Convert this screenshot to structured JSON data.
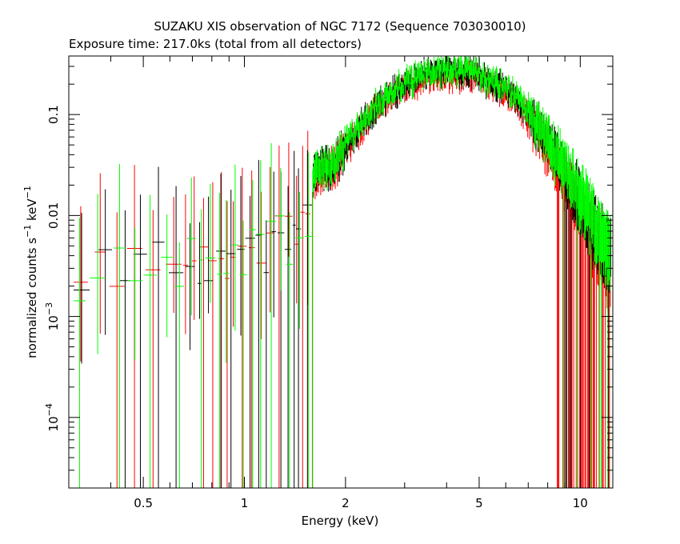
{
  "chart_data": {
    "type": "scatter",
    "title": "SUZAKU XIS observation of NGC 7172 (Sequence 703030010)",
    "subtitle": "Exposure time: 217.0ks (total from all detectors)",
    "xlabel": "Energy (keV)",
    "ylabel": {
      "main": "normalized counts s",
      "exp1": "−1",
      "mid": " keV",
      "exp2": "−1"
    },
    "x_scale": "log",
    "y_scale": "log",
    "xlim": [
      0.3,
      12.5
    ],
    "ylim": [
      2e-05,
      0.38
    ],
    "x_ticks": [
      {
        "value": 0.5,
        "label": "0.5"
      },
      {
        "value": 1,
        "label": "1"
      },
      {
        "value": 2,
        "label": "2"
      },
      {
        "value": 5,
        "label": "5"
      },
      {
        "value": 10,
        "label": "10"
      }
    ],
    "y_ticks": [
      {
        "value": 0.1,
        "label": "0.1",
        "exp": ""
      },
      {
        "value": 0.01,
        "label": "0.01",
        "exp": ""
      },
      {
        "value": 0.001,
        "label": "10",
        "exp": "−3"
      },
      {
        "value": 0.0001,
        "label": "10",
        "exp": "−4"
      }
    ],
    "grid": false,
    "series": [
      {
        "color": "#ff0000",
        "key": "red"
      },
      {
        "color": "#000000",
        "key": "black"
      },
      {
        "color": "#00ff00",
        "key": "green"
      }
    ],
    "spectrum_shape": {
      "low_energy_level": {
        "x": [
          0.3,
          1.0,
          1.6
        ],
        "y": [
          0.0025,
          0.004,
          0.008
        ]
      },
      "high_energy_curve": {
        "x": [
          1.6,
          1.7,
          1.8,
          2.0,
          2.3,
          2.6,
          3.0,
          3.5,
          4.0,
          4.5,
          5.0,
          6.0,
          7.0,
          8.0,
          9.0,
          10.0,
          11.0,
          12.0
        ],
        "y": [
          0.022,
          0.03,
          0.028,
          0.05,
          0.09,
          0.14,
          0.2,
          0.25,
          0.27,
          0.26,
          0.24,
          0.18,
          0.11,
          0.06,
          0.03,
          0.016,
          0.009,
          0.005
        ]
      }
    }
  }
}
